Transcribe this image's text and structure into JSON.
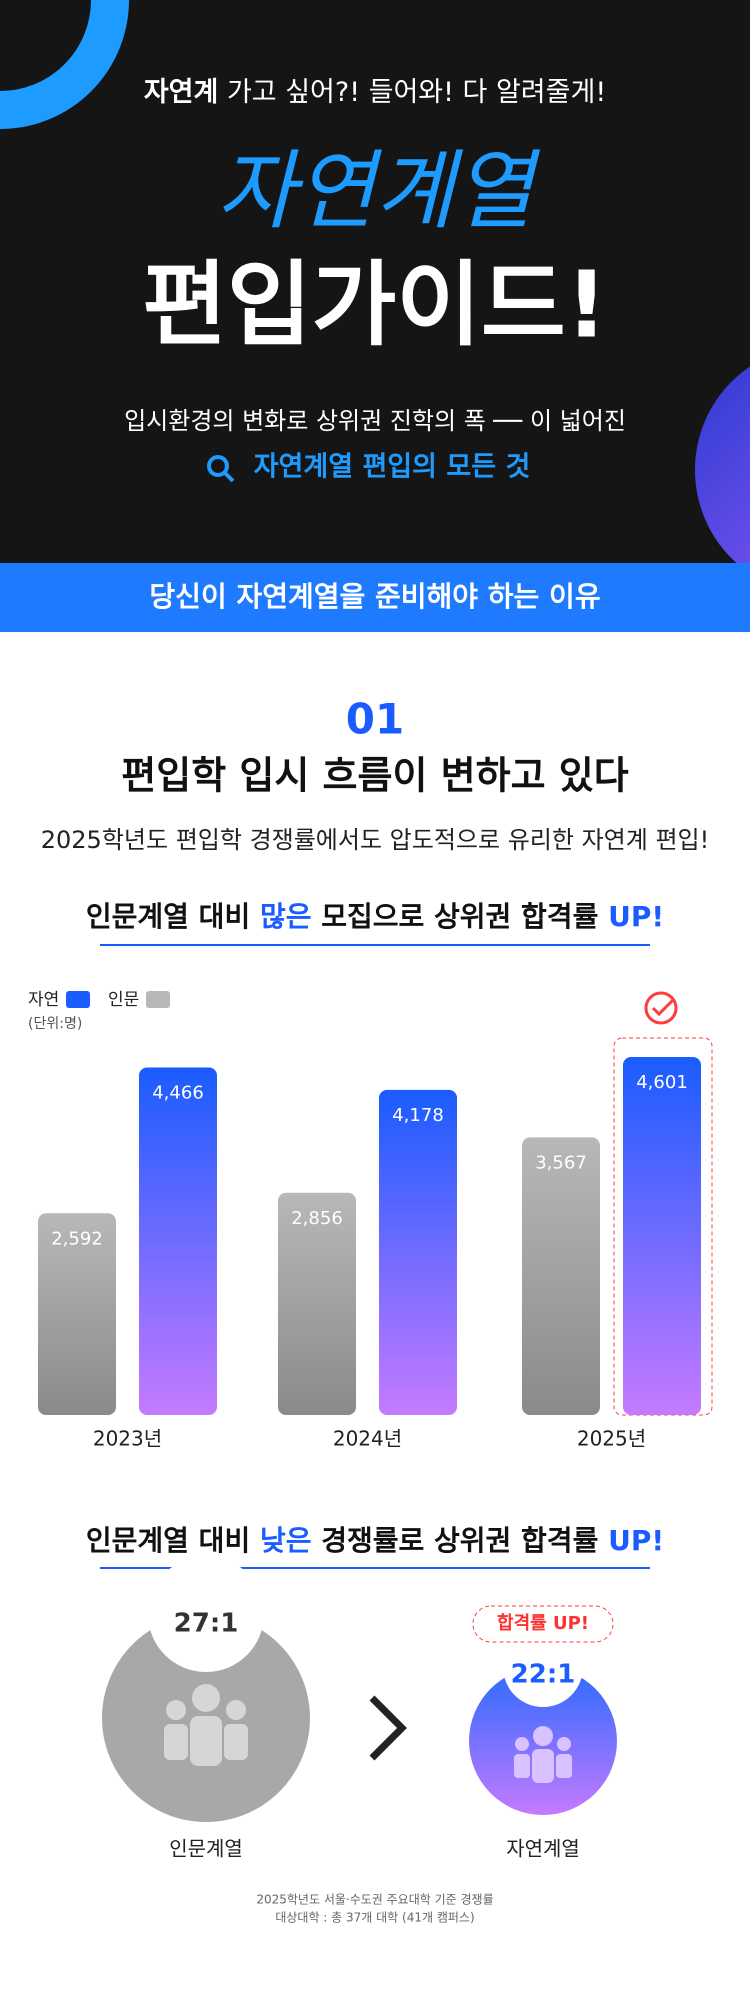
{
  "header": {
    "intro_bold": "자연계",
    "intro_rest": " 가고 싶어?! 들어와! 다 알려줄게!",
    "title_script": "자연계열",
    "title_main": "편입가이드!",
    "desc": "입시환경의 변화로 상위권 진학의 폭 ── 이 넓어진",
    "search": "자연계열 편입의 모든 것"
  },
  "band": "당신이 자연계열을 준비해야 하는 이유",
  "section": {
    "number": "01",
    "title": "편입학 입시 흐름이 변하고 있다",
    "subtitle": "2025학년도 편입학 경쟁률에서도 압도적으로 유리한 자연계 편입!"
  },
  "chart_heading": {
    "a": "인문계열 대비 ",
    "b": "많은",
    "c": " 모집으로 상위권 합격률 ",
    "d": "UP!"
  },
  "chart_data": {
    "type": "bar",
    "unit": "(단위:명)",
    "categories": [
      "2023년",
      "2024년",
      "2025년"
    ],
    "series": [
      {
        "name": "인문",
        "color": "#b8b8b8",
        "values": [
          2592,
          2856,
          3567
        ],
        "value_labels": [
          "2,592",
          "2,856",
          "3,567"
        ]
      },
      {
        "name": "자연",
        "color": "#1a5cff",
        "values": [
          4466,
          4178,
          4601
        ],
        "value_labels": [
          "4,466",
          "4,178",
          "4,601"
        ]
      }
    ]
  },
  "compare_heading": {
    "a": "인문계열 대비 ",
    "b": "낮은",
    "c": " 경쟁률로 상위권 합격률 ",
    "d": "UP!"
  },
  "compare": {
    "badge": "합격률 UP!",
    "items": [
      {
        "label": "인문계열",
        "ratio": "27:1"
      },
      {
        "label": "자연계열",
        "ratio": "22:1"
      }
    ]
  },
  "footnote": [
    "2025학년도 서울·수도권 주요대학 기준 경쟁률",
    "대상대학 : 총 37개 대학 (41개 캠퍼스)"
  ]
}
